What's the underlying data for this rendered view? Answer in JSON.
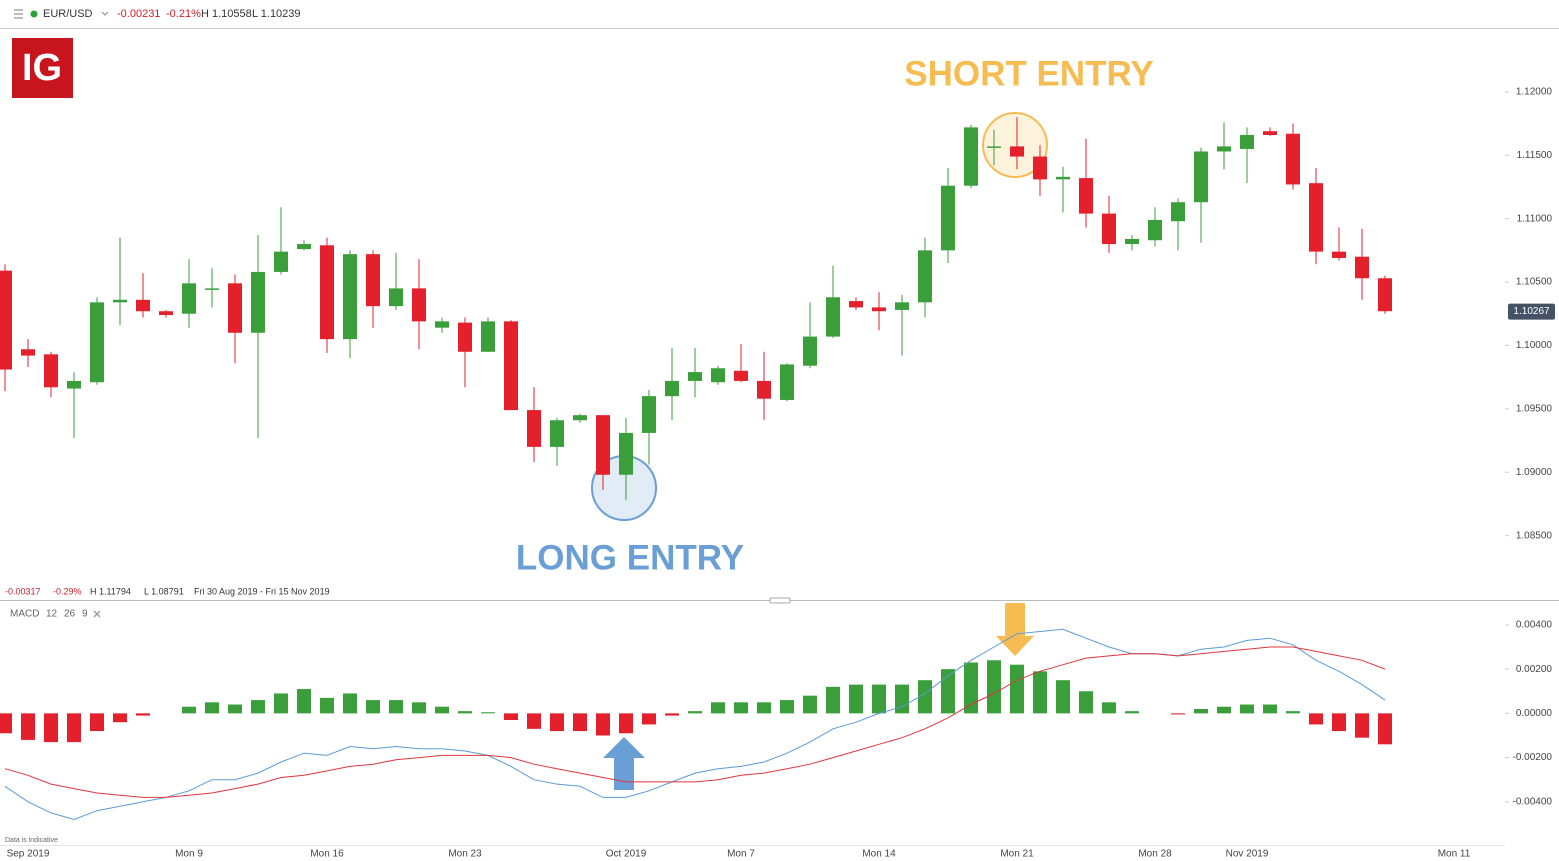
{
  "header": {
    "symbol": "EUR/USD",
    "change": "-0.00231",
    "change_pct": "-0.21%",
    "high": "H 1.10558",
    "low": "L 1.10239"
  },
  "logo": "IG",
  "range_info": {
    "change": "-0.00317",
    "change_pct": "-0.29%",
    "high": "H 1.11794",
    "low": "L 1.08791",
    "period": "Fri 30 Aug 2019 - Fri 15 Nov 2019"
  },
  "indicator": {
    "name": "MACD",
    "params": [
      "12",
      "26",
      "9"
    ]
  },
  "footnote": "Data is indicative",
  "chart_data": [
    {
      "type": "candlestick",
      "up_color": "#3a9e3a",
      "down_color": "#e3202c",
      "annotations": [
        {
          "text": "SHORT ENTRY",
          "color": "#f6bc52"
        },
        {
          "text": "LONG ENTRY",
          "color": "#6a9fd6"
        }
      ],
      "ylim": [
        1.08,
        1.125
      ],
      "yticks": [
        {
          "value": 1.085,
          "label": "1.08500"
        },
        {
          "value": 1.09,
          "label": "1.09000"
        },
        {
          "value": 1.095,
          "label": "1.09500"
        },
        {
          "value": 1.1,
          "label": "1.10000"
        },
        {
          "value": 1.105,
          "label": "1.10500"
        },
        {
          "value": 1.11,
          "label": "1.11000"
        },
        {
          "value": 1.115,
          "label": "1.11500"
        },
        {
          "value": 1.12,
          "label": "1.12000"
        }
      ],
      "last_price": 1.10267,
      "open": [
        1.1059,
        1.0997,
        1.0993,
        1.0966,
        1.0971,
        1.1034,
        1.1036,
        1.1027,
        1.1025,
        1.1044,
        1.1049,
        1.101,
        1.1058,
        1.1076,
        1.1079,
        1.1005,
        1.1072,
        1.1031,
        1.1045,
        1.1014,
        1.1018,
        1.0995,
        1.1019,
        1.0949,
        1.092,
        1.0941,
        1.0945,
        1.0898,
        1.0931,
        1.096,
        1.0972,
        1.0971,
        1.098,
        1.0972,
        1.0957,
        1.0984,
        1.1007,
        1.1035,
        1.103,
        1.1028,
        1.1034,
        1.1075,
        1.1126,
        1.1156,
        1.1157,
        1.1149,
        1.1131,
        1.1132,
        1.1104,
        1.108,
        1.1083,
        1.1098,
        1.1113,
        1.1153,
        1.1155,
        1.1169,
        1.1167,
        1.1128,
        1.1074,
        1.107,
        1.1053,
        null,
        null,
        null
      ],
      "high": [
        1.1064,
        1.1005,
        1.0995,
        1.0979,
        1.1038,
        1.1085,
        1.1057,
        1.1028,
        1.1068,
        1.1061,
        1.1056,
        1.1087,
        1.1109,
        1.1083,
        1.1085,
        1.1075,
        1.1075,
        1.1073,
        1.1068,
        1.1022,
        1.1022,
        1.1022,
        1.102,
        1.0967,
        1.0943,
        1.0946,
        1.0945,
        1.0943,
        1.0965,
        1.0998,
        1.0998,
        1.0984,
        1.1001,
        1.0995,
        1.0986,
        1.1034,
        1.1063,
        1.1038,
        1.1042,
        1.104,
        1.1085,
        1.114,
        1.1174,
        1.117,
        1.118,
        1.1158,
        1.1141,
        1.1163,
        1.1118,
        1.1087,
        1.1109,
        1.1116,
        1.1156,
        1.1176,
        1.1172,
        1.1172,
        1.1175,
        1.114,
        1.1093,
        1.1092,
        1.1055,
        null,
        null,
        null
      ],
      "low": [
        1.0964,
        1.0983,
        1.0959,
        1.0927,
        1.0969,
        1.1016,
        1.1022,
        1.1022,
        1.1014,
        1.103,
        1.0986,
        1.0927,
        1.1056,
        1.1075,
        1.0994,
        1.099,
        1.1014,
        1.1028,
        1.0997,
        1.101,
        1.0967,
        1.0995,
        1.0949,
        1.0908,
        1.0905,
        1.0939,
        1.0886,
        1.0878,
        1.0906,
        1.0941,
        1.0959,
        1.0969,
        1.0971,
        1.0941,
        1.0956,
        1.0982,
        1.1006,
        1.1028,
        1.1012,
        1.0992,
        1.1022,
        1.1065,
        1.1124,
        1.1142,
        1.1139,
        1.1118,
        1.1105,
        1.1093,
        1.1073,
        1.1075,
        1.1078,
        1.1075,
        1.1081,
        1.1139,
        1.1128,
        1.1165,
        1.1123,
        1.1064,
        1.1067,
        1.1036,
        1.1025,
        null,
        null,
        null
      ],
      "close": [
        1.0981,
        1.0992,
        1.0967,
        1.0972,
        1.1034,
        1.1036,
        1.1027,
        1.1024,
        1.1049,
        1.1045,
        1.101,
        1.1058,
        1.1074,
        1.108,
        1.1005,
        1.1072,
        1.1031,
        1.1045,
        1.1019,
        1.1019,
        1.0995,
        1.1019,
        1.0949,
        1.092,
        1.0941,
        1.0945,
        1.0898,
        1.0931,
        1.096,
        1.0972,
        1.0979,
        1.0982,
        1.0972,
        1.0958,
        1.0985,
        1.1007,
        1.1038,
        1.103,
        1.1027,
        1.1034,
        1.1075,
        1.1126,
        1.1172,
        1.1157,
        1.1149,
        1.1131,
        1.1133,
        1.1104,
        1.108,
        1.1084,
        1.1099,
        1.1113,
        1.1153,
        1.1157,
        1.1166,
        1.1166,
        1.1127,
        1.1074,
        1.1069,
        1.1053,
        1.1027,
        null,
        null,
        null
      ]
    },
    {
      "type": "macd",
      "up_color": "#3a9e3a",
      "down_color": "#e3202c",
      "ylim": [
        -0.0055,
        0.0049
      ],
      "yticks": [
        {
          "value": 0.004,
          "label": "0.00400"
        },
        {
          "value": 0.002,
          "label": "0.00200"
        },
        {
          "value": 0,
          "label": "0.00000"
        },
        {
          "value": -0.002,
          "label": "-0.00200"
        },
        {
          "value": -0.004,
          "label": "-0.00400"
        }
      ],
      "categories": [
        null,
        "Sep 2019",
        null,
        null,
        null,
        null,
        null,
        null,
        "Mon 9",
        null,
        null,
        null,
        null,
        null,
        "Mon 16",
        null,
        null,
        null,
        null,
        null,
        "Mon 23",
        null,
        null,
        null,
        null,
        null,
        null,
        "Oct 2019",
        null,
        null,
        null,
        null,
        "Mon 7",
        null,
        null,
        null,
        null,
        null,
        "Mon 14",
        null,
        null,
        null,
        null,
        null,
        "Mon 21",
        null,
        null,
        null,
        null,
        null,
        "Mon 28",
        null,
        null,
        null,
        "Nov 2019",
        null,
        null,
        null,
        null,
        null,
        null,
        null,
        null,
        "Mon 11"
      ],
      "histogram": [
        -0.0009,
        -0.0012,
        -0.0013,
        -0.0013,
        -0.0008,
        -0.0004,
        -0.0001,
        0,
        0.0003,
        0.0005,
        0.0004,
        0.0006,
        0.0009,
        0.0011,
        0.0007,
        0.0009,
        0.0006,
        0.0006,
        0.0005,
        0.0003,
        0.0001,
        5e-05,
        -0.0003,
        -0.0007,
        -0.0008,
        -0.0008,
        -0.001,
        -0.0009,
        -0.0005,
        -0.0001,
        0.0001,
        0.0005,
        0.0005,
        0.0005,
        0.0006,
        0.0008,
        0.0012,
        0.0013,
        0.0013,
        0.0013,
        0.0015,
        0.002,
        0.0023,
        0.0024,
        0.0022,
        0.0019,
        0.0015,
        0.001,
        0.0005,
        0.0001,
        0,
        -5e-05,
        0.0002,
        0.0003,
        0.0004,
        0.0004,
        0.0001,
        -0.0005,
        -0.0008,
        -0.0011,
        -0.0014,
        null,
        null,
        null
      ],
      "macd_line": {
        "color": "#5b9bd5",
        "values": [
          -0.0033,
          -0.004,
          -0.0045,
          -0.0048,
          -0.0044,
          -0.0042,
          -0.004,
          -0.0038,
          -0.0035,
          -0.003,
          -0.003,
          -0.0027,
          -0.0022,
          -0.0018,
          -0.0019,
          -0.0015,
          -0.0016,
          -0.0015,
          -0.0016,
          -0.0016,
          -0.0017,
          -0.0019,
          -0.0024,
          -0.003,
          -0.0032,
          -0.0033,
          -0.0038,
          -0.0038,
          -0.0035,
          -0.0031,
          -0.0027,
          -0.0025,
          -0.0024,
          -0.0022,
          -0.0018,
          -0.0013,
          -0.0007,
          -0.0004,
          0,
          0.0003,
          0.0009,
          0.0017,
          0.0024,
          0.003,
          0.0036,
          0.0037,
          0.0038,
          0.0034,
          0.003,
          0.0027,
          0.0027,
          0.0026,
          0.0029,
          0.003,
          0.0033,
          0.0034,
          0.0031,
          0.0024,
          0.0019,
          0.0013,
          0.0006,
          null,
          null,
          null
        ]
      },
      "signal_line": {
        "color": "#e0353d",
        "values": [
          -0.0025,
          -0.0028,
          -0.0032,
          -0.0034,
          -0.0036,
          -0.0037,
          -0.0038,
          -0.0038,
          -0.0037,
          -0.0036,
          -0.0034,
          -0.0032,
          -0.0029,
          -0.0028,
          -0.0026,
          -0.0024,
          -0.0023,
          -0.0021,
          -0.002,
          -0.0019,
          -0.0019,
          -0.0019,
          -0.002,
          -0.0023,
          -0.0025,
          -0.0027,
          -0.0029,
          -0.0031,
          -0.0031,
          -0.0031,
          -0.0031,
          -0.003,
          -0.0028,
          -0.0027,
          -0.0025,
          -0.0023,
          -0.002,
          -0.0017,
          -0.0014,
          -0.0011,
          -0.0007,
          -0.0002,
          0.0004,
          0.0009,
          0.0015,
          0.0019,
          0.0022,
          0.0025,
          0.0026,
          0.0027,
          0.0027,
          0.0026,
          0.0027,
          0.0028,
          0.0029,
          0.003,
          0.003,
          0.0028,
          0.0026,
          0.0024,
          0.002,
          null,
          null,
          null
        ]
      }
    }
  ]
}
